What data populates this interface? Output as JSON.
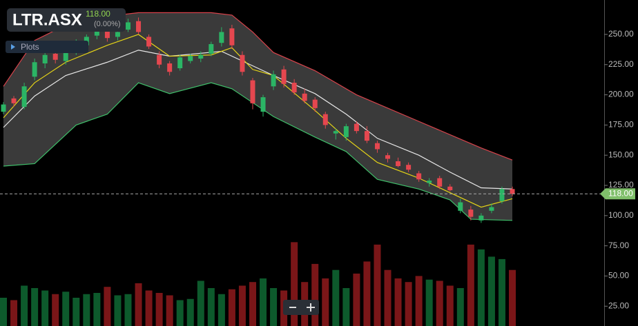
{
  "ticker": {
    "symbol": "LTR.ASX",
    "price": "118.00",
    "change": "(0.00%)",
    "plots_button": "Plots"
  },
  "chart_data": {
    "type": "candlestick",
    "open": [
      186,
      197,
      190,
      215,
      226,
      234,
      228,
      236,
      241,
      249,
      253,
      248,
      254,
      261,
      248,
      233,
      226,
      222,
      228,
      230,
      234,
      243,
      255,
      233,
      212,
      186,
      207,
      221,
      210,
      201,
      196,
      184,
      168,
      165,
      176,
      170,
      160,
      150,
      145,
      142,
      135,
      127,
      131,
      124,
      104,
      105,
      96,
      104,
      112,
      122
    ],
    "high": [
      194,
      199,
      210,
      230,
      236,
      238,
      240,
      246,
      250,
      258,
      256,
      254,
      263,
      264,
      250,
      236,
      228,
      233,
      234,
      236,
      244,
      256,
      258,
      236,
      214,
      200,
      220,
      224,
      213,
      205,
      198,
      186,
      172,
      176,
      178,
      174,
      162,
      152,
      148,
      144,
      137,
      131,
      133,
      126,
      114,
      108,
      102,
      110,
      124,
      124
    ],
    "low": [
      184,
      190,
      188,
      212,
      222,
      226,
      225,
      233,
      238,
      246,
      244,
      245,
      252,
      250,
      238,
      222,
      216,
      220,
      226,
      227,
      232,
      240,
      238,
      216,
      188,
      182,
      204,
      206,
      200,
      193,
      186,
      172,
      163,
      162,
      168,
      160,
      152,
      144,
      140,
      136,
      128,
      124,
      122,
      120,
      102,
      96,
      94,
      102,
      110,
      116
    ],
    "close": [
      192,
      193,
      207,
      227,
      233,
      229,
      237,
      243,
      248,
      255,
      247,
      252,
      260,
      252,
      240,
      225,
      219,
      231,
      232,
      233,
      242,
      252,
      241,
      219,
      193,
      198,
      217,
      209,
      202,
      195,
      189,
      175,
      170,
      174,
      170,
      162,
      155,
      147,
      141,
      138,
      130,
      129,
      124,
      121,
      111,
      99,
      100,
      107,
      122,
      118
    ],
    "volume": [
      32,
      30,
      42,
      40,
      38,
      35,
      37,
      32,
      35,
      36,
      41,
      34,
      35,
      44,
      38,
      36,
      34,
      30,
      31,
      46,
      40,
      35,
      39,
      42,
      45,
      48,
      40,
      38,
      78,
      45,
      60,
      48,
      55,
      40,
      52,
      62,
      76,
      55,
      48,
      45,
      50,
      47,
      46,
      42,
      40,
      76,
      72,
      66,
      64,
      55
    ],
    "up_color": "#2bb565",
    "down_color": "#e5474f",
    "volume_up_color": "#0d5a2c",
    "volume_down_color": "#7a1618",
    "bands": [
      {
        "color": "#d9434b",
        "x": [
          0,
          3,
          7,
          13,
          20,
          22,
          24,
          26,
          30,
          34,
          40,
          46,
          49
        ],
        "values": [
          207,
          245,
          262,
          268,
          268,
          266,
          252,
          235,
          220,
          200,
          178,
          156,
          146
        ]
      },
      {
        "color": "#3fbf6a",
        "x": [
          0,
          3,
          7,
          10,
          13,
          16,
          20,
          22,
          26,
          30,
          33,
          36,
          40,
          43,
          45,
          49
        ],
        "values": [
          141,
          143,
          175,
          184,
          210,
          201,
          210,
          205,
          182,
          165,
          153,
          130,
          122,
          113,
          97,
          96
        ]
      },
      {
        "color": "#e8e8e8",
        "x": [
          0,
          3,
          6,
          10,
          13,
          16,
          21,
          24,
          26,
          30,
          33,
          36,
          40,
          43,
          46,
          49
        ],
        "values": [
          173,
          199,
          216,
          227,
          237,
          232,
          236,
          224,
          216,
          201,
          184,
          164,
          150,
          136,
          123,
          122
        ]
      },
      {
        "color": "#e5d417",
        "x": [
          0,
          3,
          6,
          10,
          13,
          16,
          20,
          22,
          24,
          26,
          30,
          33,
          36,
          40,
          43,
          46,
          49
        ],
        "values": [
          181,
          210,
          227,
          241,
          250,
          232,
          233,
          239,
          221,
          216,
          187,
          164,
          144,
          131,
          119,
          107,
          114
        ]
      }
    ],
    "band_fill": "#3a3a3a",
    "last": {
      "value": 118,
      "label": "118.00"
    },
    "last_color": "#7fbf6a",
    "ylim": [
      8.6,
      278.5
    ],
    "yticks": [
      {
        "value": 25,
        "label": "25.00"
      },
      {
        "value": 50,
        "label": "50.00"
      },
      {
        "value": 75,
        "label": "75.00"
      },
      {
        "value": 100,
        "label": "100.00"
      },
      {
        "value": 125,
        "label": "125.00"
      },
      {
        "value": 150,
        "label": "150.00"
      },
      {
        "value": 175,
        "label": "175.00"
      },
      {
        "value": 200,
        "label": "200.00"
      },
      {
        "value": 225,
        "label": "225.00"
      },
      {
        "value": 250,
        "label": "250.00"
      }
    ]
  }
}
